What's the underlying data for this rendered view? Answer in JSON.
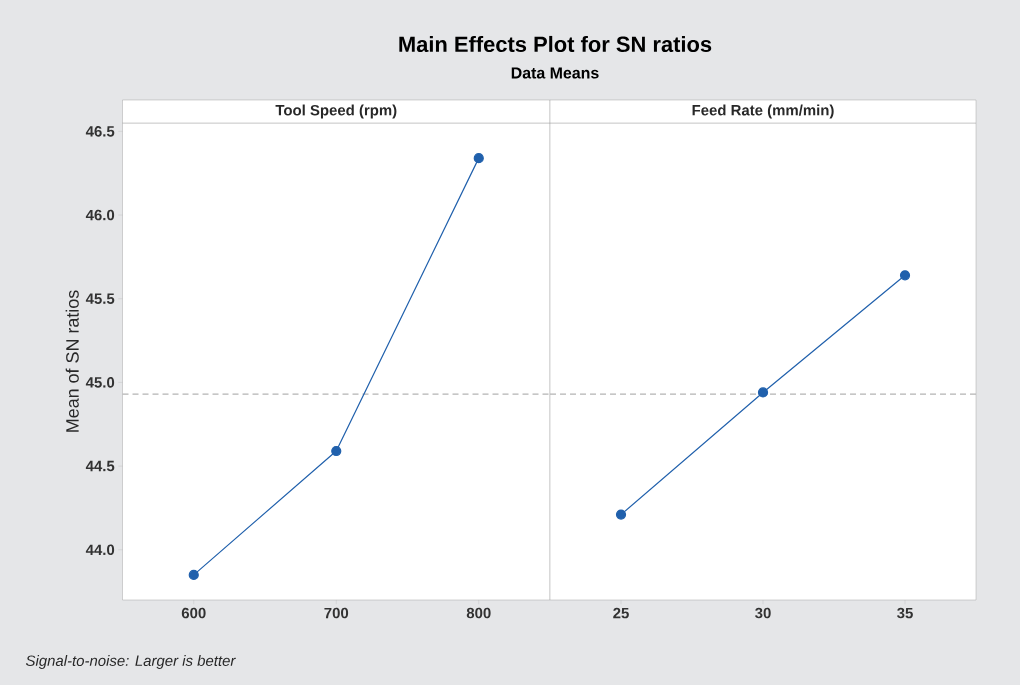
{
  "chart_data": [
    {
      "type": "line",
      "title": "Main Effects Plot for SN ratios",
      "subtitle": "Data Means",
      "xlabel": "Tool Speed (rpm)",
      "ylabel": "Mean of SN ratios",
      "x": [
        600,
        700,
        800
      ],
      "values": [
        43.85,
        44.59,
        46.34
      ],
      "color": "#2060ac",
      "marker": "circle",
      "line_style": "solid",
      "xlim": [
        550,
        850
      ],
      "xticks": [
        600,
        700,
        800
      ],
      "ylim": [
        43.7,
        46.55
      ],
      "yticks": [
        {
          "value": 44,
          "label": "44.0"
        },
        44.5,
        {
          "value": 45,
          "label": "45.0"
        },
        45.5,
        {
          "value": 46,
          "label": "46.0"
        },
        46.5
      ],
      "ref_lines": [
        {
          "axis": "y",
          "value": 44.93,
          "color": "#b4b4b4",
          "line_style": "dashed"
        }
      ],
      "annotations": [
        "Signal-to-noise: Larger is better"
      ]
    },
    {
      "type": "line",
      "xlabel": "Feed Rate (mm/min)",
      "x": [
        25,
        30,
        35
      ],
      "values": [
        44.21,
        44.94,
        45.64
      ],
      "color": "#2060ac",
      "marker": "circle",
      "line_style": "solid",
      "xlim": [
        22.5,
        37.5
      ],
      "xticks": [
        25,
        30,
        35
      ],
      "ylim": [
        43.7,
        46.55
      ],
      "tick_labels": "x",
      "ref_lines": [
        {
          "axis": "y",
          "value": 44.93,
          "color": "#b4b4b4",
          "line_style": "dashed"
        }
      ]
    }
  ]
}
